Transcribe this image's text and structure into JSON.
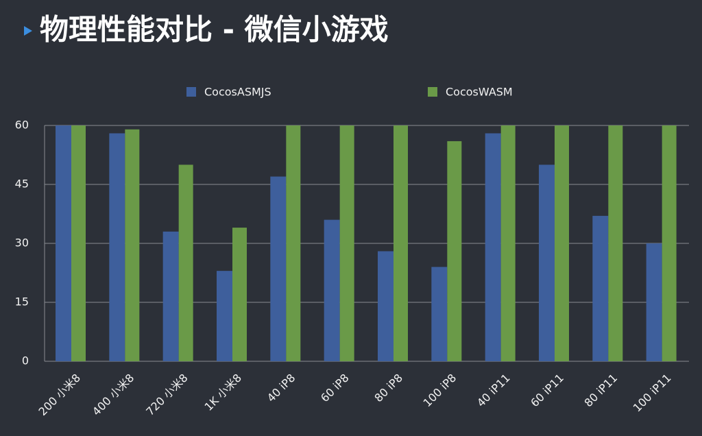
{
  "chart_data": {
    "type": "bar",
    "title": "物理性能对比 - 微信小游戏",
    "categories": [
      "200 小米8",
      "400 小米8",
      "720 小米8",
      "1K 小米8",
      "40 iP8",
      "60 iP8",
      "80 iP8",
      "100 iP8",
      "40 iP11",
      "60 iP11",
      "80 iP11",
      "100 iP11"
    ],
    "series": [
      {
        "name": "CocosASMJS",
        "color": "#3e5f9c",
        "values": [
          60,
          58,
          33,
          23,
          47,
          36,
          28,
          24,
          58,
          50,
          37,
          30
        ]
      },
      {
        "name": "CocosWASM",
        "color": "#6a9a48",
        "values": [
          60,
          59,
          50,
          34,
          60,
          60,
          60,
          56,
          60,
          60,
          60,
          60
        ]
      }
    ],
    "ylim": [
      0,
      60
    ],
    "yticks": [
      0,
      15,
      30,
      45,
      60
    ],
    "grid": true,
    "legend": "top"
  }
}
